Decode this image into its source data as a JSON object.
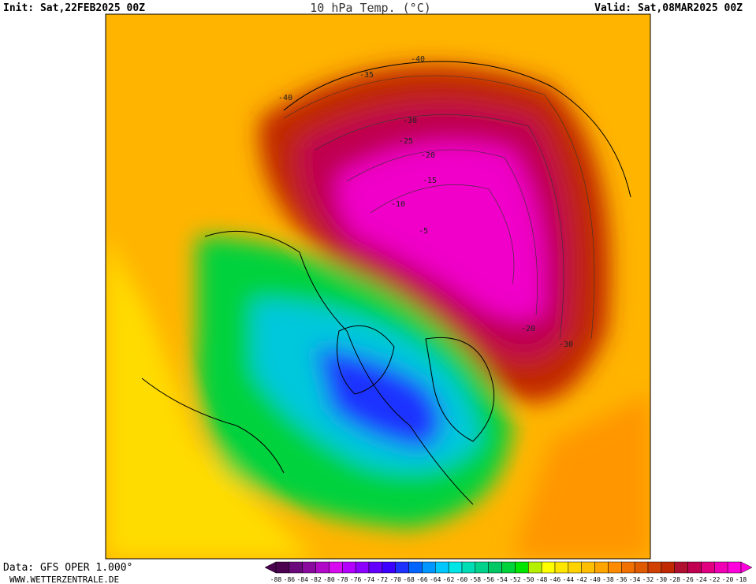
{
  "header": {
    "init": "Init: Sat,22FEB2025 00Z",
    "title": "10 hPa Temp. (°C)",
    "valid": "Valid: Sat,08MAR2025 00Z"
  },
  "footer": {
    "source": "Data: GFS OPER 1.000°",
    "url": "WWW.WETTERZENTRALE.DE"
  },
  "contour_labels": [
    -40,
    -35,
    -40,
    -30,
    -25,
    -20,
    -15,
    -10,
    -5,
    -20,
    -30
  ],
  "legend": {
    "labels": [
      -88,
      -86,
      -84,
      -82,
      -80,
      -78,
      -76,
      -74,
      -72,
      -70,
      -68,
      -66,
      -64,
      -62,
      -60,
      -58,
      -56,
      -54,
      -52,
      -50,
      -48,
      -46,
      -44,
      -42,
      -40,
      -38,
      -36,
      -34,
      -32,
      -30,
      -28,
      -26,
      -24,
      -22,
      -20,
      -18
    ],
    "colors": [
      "#4b0050",
      "#6a0a7a",
      "#8a0aa0",
      "#b00ac8",
      "#d80af0",
      "#b400ff",
      "#8c00ff",
      "#6400ff",
      "#3c00ff",
      "#1e32ff",
      "#0064ff",
      "#0096ff",
      "#00c8ff",
      "#00e6e6",
      "#00dcb4",
      "#00d28c",
      "#00c864",
      "#00d23c",
      "#00e600",
      "#b4f000",
      "#ffff00",
      "#ffe600",
      "#ffd200",
      "#ffbe00",
      "#ffa500",
      "#ff8c00",
      "#f07000",
      "#e05a00",
      "#d04000",
      "#c02800",
      "#b01030",
      "#c00050",
      "#e00080",
      "#f000b4",
      "#ff00dc"
    ]
  }
}
